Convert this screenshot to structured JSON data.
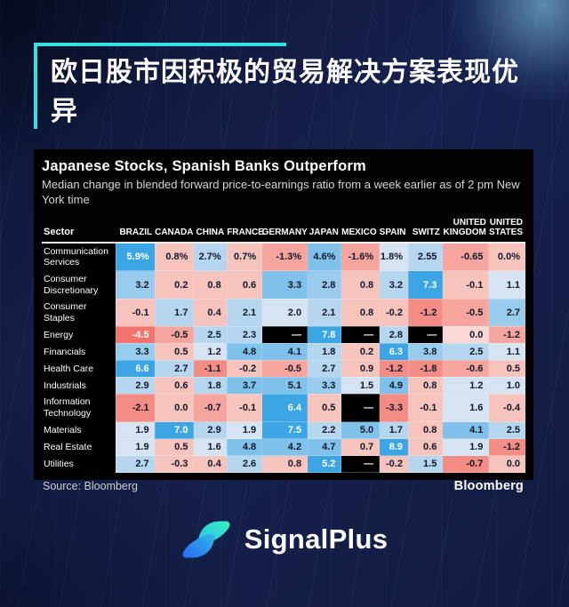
{
  "headline": {
    "text": "欧日股市因积极的贸易解决方案表现优异"
  },
  "panel": {
    "title": "Japanese Stocks, Spanish Banks Outperform",
    "subtitle": "Median change in blended forward price-to-earnings ratio from a week earlier as of 2 pm New York time",
    "source_label": "Source: Bloomberg",
    "bloomberg_brand": "Bloomberg"
  },
  "footer": {
    "brand": "SignalPlus"
  },
  "colors": {
    "accent_cyan": "#38dfe2",
    "page_bg": "#131d45",
    "panel_bg": "#000000",
    "logo_gradient_blue": "#2968f0",
    "logo_gradient_teal": "#3af0c0",
    "positive_strong_blue": "#3ba6e3",
    "negative_strong_red": "#f3746c"
  },
  "palette": {
    "b5": "#3ba6e3",
    "b4": "#7fc1ea",
    "b3": "#98cbec",
    "b2": "#b6d5ef",
    "b1": "#d6e3f3",
    "r1": "#fad7d2",
    "r2": "#f7c3bd",
    "r3": "#f5a59e",
    "r4": "#f28c84",
    "r5": "#f3746c",
    "k": "#000000"
  },
  "chart_data": {
    "type": "heatmap",
    "title": "Japanese Stocks, Spanish Banks Outperform",
    "subtitle": "Median change in blended forward price-to-earnings ratio from a week earlier as of 2 pm New York time",
    "source": "Bloomberg",
    "legend": "blue = positive weekly change, red = negative weekly change, black dash = no data",
    "row_header": "Sector",
    "columns": [
      "BRAZIL",
      "CANADA",
      "CHINA",
      "FRANCE",
      "GERMANY",
      "JAPAN",
      "MEXICO",
      "SPAIN",
      "SWITZ",
      "UNITED KINGDOM",
      "UNITED STATES"
    ],
    "rows": [
      {
        "sector": "Communication Services",
        "values": [
          "5.9%",
          "0.8%",
          "2.7%",
          "0.7%",
          "-1.3%",
          "4.6%",
          "-1.6%",
          "1.8%",
          "2.55",
          "-0.65",
          "0.0%"
        ],
        "colors": [
          "b5",
          "r2",
          "b2",
          "r2",
          "r3",
          "b4",
          "r3",
          "b1",
          "b2",
          "r3",
          "r2"
        ]
      },
      {
        "sector": "Consumer Discretionary",
        "values": [
          "3.2",
          "0.2",
          "0.8",
          "0.6",
          "3.3",
          "2.8",
          "0.8",
          "3.2",
          "7.3",
          "-0.1",
          "1.1"
        ],
        "colors": [
          "b3",
          "r2",
          "r2",
          "r2",
          "b4",
          "b3",
          "r2",
          "b2",
          "b5",
          "r2",
          "b1"
        ]
      },
      {
        "sector": "Consumer Staples",
        "values": [
          "-0.1",
          "1.7",
          "0.4",
          "2.1",
          "2.0",
          "2.1",
          "0.8",
          "-0.2",
          "-1.2",
          "-0.5",
          "2.7"
        ],
        "colors": [
          "r2",
          "b2",
          "r2",
          "b2",
          "b1",
          "b2",
          "r2",
          "r2",
          "r4",
          "r3",
          "b3"
        ]
      },
      {
        "sector": "Energy",
        "values": [
          "-4.5",
          "-0.5",
          "2.5",
          "2.3",
          "—",
          "7.8",
          "—",
          "2.8",
          "—",
          "0.0",
          "-1.2"
        ],
        "colors": [
          "r5",
          "r3",
          "b2",
          "b2",
          "k",
          "b5",
          "k",
          "b2",
          "k",
          "r1",
          "r3"
        ]
      },
      {
        "sector": "Financials",
        "values": [
          "3.3",
          "0.5",
          "1.2",
          "4.8",
          "4.1",
          "1.8",
          "0.2",
          "6.3",
          "3.8",
          "2.5",
          "1.1"
        ],
        "colors": [
          "b3",
          "r2",
          "b1",
          "b4",
          "b4",
          "b2",
          "r2",
          "b5",
          "b3",
          "b2",
          "b1"
        ]
      },
      {
        "sector": "Health Care",
        "values": [
          "6.6",
          "2.7",
          "-1.1",
          "-0.2",
          "-0.5",
          "2.7",
          "0.9",
          "-1.2",
          "-1.8",
          "-0.6",
          "0.5"
        ],
        "colors": [
          "b5",
          "b2",
          "r4",
          "r2",
          "r3",
          "b2",
          "r2",
          "r4",
          "r4",
          "r3",
          "r2"
        ]
      },
      {
        "sector": "Industrials",
        "values": [
          "2.9",
          "0.6",
          "1.8",
          "3.7",
          "5.1",
          "3.3",
          "1.5",
          "4.9",
          "0.8",
          "1.2",
          "1.0"
        ],
        "colors": [
          "b2",
          "r2",
          "b2",
          "b4",
          "b4",
          "b3",
          "b1",
          "b4",
          "r2",
          "b1",
          "b1"
        ]
      },
      {
        "sector": "Information Technology",
        "values": [
          "-2.1",
          "0.0",
          "-0.7",
          "-0.1",
          "6.4",
          "0.5",
          "—",
          "-3.3",
          "-0.1",
          "1.6",
          "-0.4"
        ],
        "colors": [
          "r4",
          "r2",
          "r3",
          "r2",
          "b5",
          "r2",
          "k",
          "r4",
          "r2",
          "b1",
          "r2"
        ]
      },
      {
        "sector": "Materials",
        "values": [
          "1.9",
          "7.0",
          "2.9",
          "1.9",
          "7.5",
          "2.2",
          "5.0",
          "1.7",
          "0.8",
          "4.1",
          "2.5"
        ],
        "colors": [
          "b1",
          "b5",
          "b2",
          "b1",
          "b5",
          "b2",
          "b4",
          "b2",
          "r2",
          "b4",
          "b2"
        ]
      },
      {
        "sector": "Real Estate",
        "values": [
          "1.9",
          "0.5",
          "1.6",
          "4.8",
          "4.2",
          "4.7",
          "0.7",
          "8.9",
          "0.6",
          "1.9",
          "-1.2"
        ],
        "colors": [
          "b1",
          "r2",
          "b1",
          "b4",
          "b4",
          "b4",
          "r2",
          "b5",
          "r2",
          "b1",
          "r4"
        ]
      },
      {
        "sector": "Utilities",
        "values": [
          "2.7",
          "-0.3",
          "0.4",
          "2.6",
          "0.8",
          "5.2",
          "—",
          "-0.2",
          "1.5",
          "-0.7",
          "0.0"
        ],
        "colors": [
          "b2",
          "r2",
          "r2",
          "b2",
          "r2",
          "b5",
          "k",
          "r2",
          "b2",
          "r4",
          "r2"
        ]
      }
    ]
  }
}
